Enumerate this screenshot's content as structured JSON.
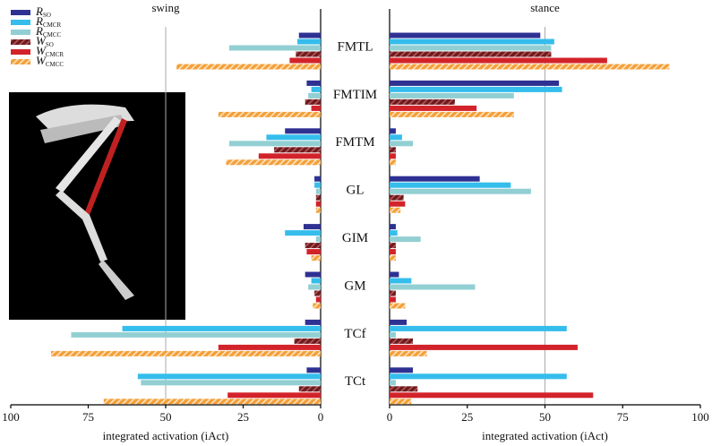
{
  "chart_data": [
    {
      "type": "hbar",
      "title": "swing",
      "xlabel": "integrated activation (iAct)",
      "categories": [
        "FMTL",
        "FMTIM",
        "FMTM",
        "GL",
        "GIM",
        "GM",
        "TCf",
        "TCt"
      ],
      "xlim": [
        100,
        0
      ],
      "xticks": [
        100,
        75,
        50,
        25,
        0
      ],
      "vlines": [
        50
      ],
      "legend": "upper left",
      "series": [
        {
          "name": "RSO",
          "color": "#2e3192",
          "hatch": false,
          "values": [
            7,
            4.5,
            11.5,
            2,
            5.5,
            5,
            5,
            4.5
          ]
        },
        {
          "name": "RCMCR",
          "color": "#35bdec",
          "hatch": false,
          "values": [
            7.5,
            3,
            17.5,
            2,
            11.5,
            3,
            64,
            59
          ]
        },
        {
          "name": "RCMCC",
          "color": "#92cfd3",
          "hatch": false,
          "values": [
            29.5,
            4,
            29.5,
            1.5,
            1.5,
            4,
            80.5,
            58
          ]
        },
        {
          "name": "WSO",
          "color": "#6b1c1f",
          "hatch": true,
          "values": [
            8,
            5,
            15,
            1.5,
            5,
            2,
            8.5,
            7
          ]
        },
        {
          "name": "WCMCR",
          "color": "#d3232a",
          "hatch": false,
          "values": [
            10,
            3,
            20,
            1.5,
            4.5,
            1.5,
            33,
            30
          ]
        },
        {
          "name": "WCMCC",
          "color": "#f3a03a",
          "hatch": true,
          "values": [
            46.5,
            33,
            30.5,
            1.5,
            3,
            2.5,
            87,
            70
          ]
        }
      ]
    },
    {
      "type": "hbar",
      "title": "stance",
      "xlabel": "integrated activation (iAct)",
      "xlim": [
        0,
        100
      ],
      "xticks": [
        0,
        25,
        50,
        75,
        100
      ],
      "vlines": [
        50
      ],
      "series": [
        {
          "color": "#2e3192",
          "hatch": false,
          "values": [
            48.5,
            54.5,
            2,
            29,
            2,
            3,
            5.5,
            7.5
          ]
        },
        {
          "color": "#35bdec",
          "hatch": false,
          "values": [
            53,
            55.5,
            4,
            39,
            2.5,
            7,
            57,
            57
          ]
        },
        {
          "color": "#92cfd3",
          "hatch": false,
          "values": [
            52,
            40,
            7.5,
            45.5,
            10,
            27.5,
            2,
            2
          ]
        },
        {
          "color": "#6b1c1f",
          "hatch": true,
          "values": [
            52,
            21,
            2,
            4.5,
            2,
            2,
            7.5,
            9
          ]
        },
        {
          "color": "#d3232a",
          "hatch": false,
          "values": [
            70,
            28,
            2,
            5,
            2,
            2,
            60.5,
            65.5
          ]
        },
        {
          "color": "#f3a03a",
          "hatch": true,
          "values": [
            90,
            40,
            2,
            3.5,
            2,
            5,
            12,
            7
          ]
        }
      ]
    }
  ]
}
